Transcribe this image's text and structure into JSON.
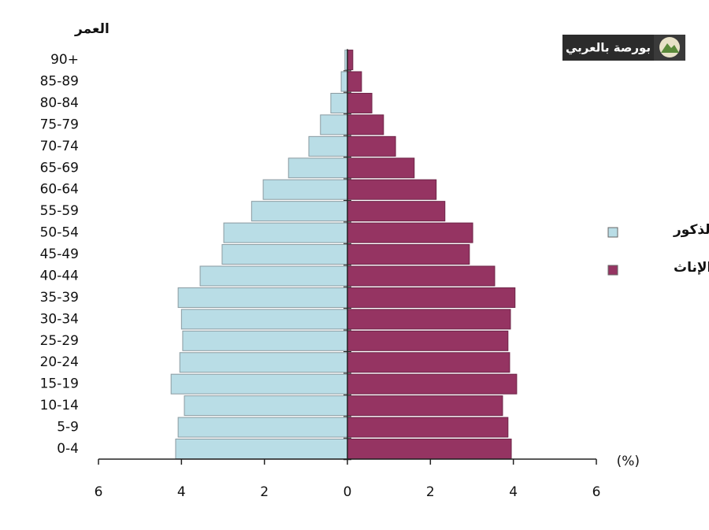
{
  "logo": "بورصة بالعربي",
  "chart_data": {
    "type": "pyramid",
    "y_axis_title": "العمر",
    "x_axis_label": "(%)",
    "categories": [
      "0-4",
      "5-9",
      "10-14",
      "15-19",
      "20-24",
      "25-29",
      "30-34",
      "35-39",
      "40-44",
      "45-49",
      "50-54",
      "55-59",
      "60-64",
      "65-69",
      "70-74",
      "75-79",
      "80-84",
      "85-89",
      "90+"
    ],
    "series": [
      {
        "name": "الذكور",
        "color": "#b9dde6",
        "values": [
          4.14,
          4.08,
          3.93,
          4.25,
          4.04,
          3.97,
          4.0,
          4.08,
          3.55,
          3.02,
          2.98,
          2.31,
          2.03,
          1.42,
          0.93,
          0.65,
          0.4,
          0.15,
          0.06
        ]
      },
      {
        "name": "الإناث",
        "color": "#953462",
        "values": [
          3.95,
          3.87,
          3.74,
          4.08,
          3.91,
          3.87,
          3.93,
          4.04,
          3.55,
          2.94,
          3.02,
          2.35,
          2.14,
          1.61,
          1.16,
          0.87,
          0.59,
          0.34,
          0.13
        ]
      }
    ],
    "xlim": [
      -6,
      6
    ],
    "xticks": [
      {
        "value": -6,
        "label": "6"
      },
      {
        "value": -4,
        "label": "4"
      },
      {
        "value": -2,
        "label": "2"
      },
      0,
      2,
      4,
      6
    ]
  }
}
